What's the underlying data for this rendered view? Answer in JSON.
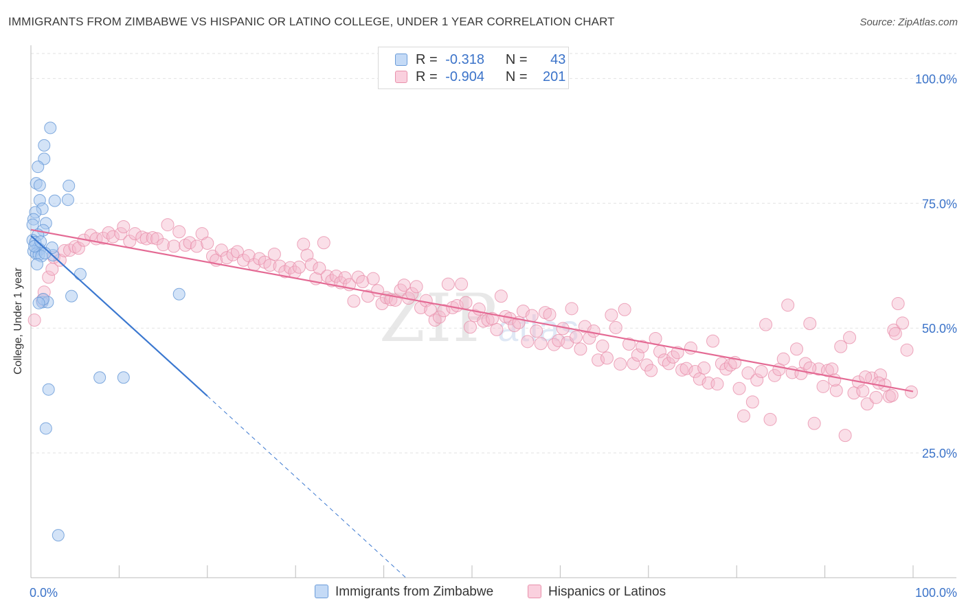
{
  "header": {
    "title": "IMMIGRANTS FROM ZIMBABWE VS HISPANIC OR LATINO COLLEGE, UNDER 1 YEAR CORRELATION CHART",
    "source": "Source: ZipAtlas.com"
  },
  "watermark": {
    "main": "ZIP",
    "sub": "atlas"
  },
  "legend_top": {
    "rows": [
      {
        "r_label": "R =",
        "r_value": "-0.318",
        "n_label": "N =",
        "n_value": "43",
        "color": "#a8c8f0"
      },
      {
        "r_label": "R =",
        "r_value": "-0.904",
        "n_label": "N =",
        "n_value": "201",
        "color": "#f5b8cc"
      }
    ]
  },
  "legend_bottom": {
    "series1": "Immigrants from Zimbabwe",
    "series2": "Hispanics or Latinos"
  },
  "colors": {
    "blue_fill": "#a8c8f0",
    "blue_stroke": "#6a9bd8",
    "blue_line": "#3b78d0",
    "pink_fill": "#f5b8cc",
    "pink_stroke": "#e890ab",
    "pink_line": "#e46a94",
    "axis_text": "#3b73c9",
    "grid": "#e2e2e2"
  },
  "chart_data": {
    "type": "scatter",
    "title": "IMMIGRANTS FROM ZIMBABWE VS HISPANIC OR LATINO COLLEGE, UNDER 1 YEAR CORRELATION CHART",
    "xlabel": "",
    "ylabel": "College, Under 1 year",
    "xlim": [
      0,
      100
    ],
    "ylim": [
      0,
      105
    ],
    "x_tick_labels": [
      "0.0%",
      "100.0%"
    ],
    "y_ticks": [
      25,
      50,
      75,
      100
    ],
    "y_tick_labels": [
      "25.0%",
      "50.0%",
      "75.0%",
      "100.0%"
    ],
    "grid": true,
    "legend_placement": "top-center",
    "series": [
      {
        "name": "Immigrants from Zimbabwe",
        "r": -0.318,
        "n": 43,
        "trend": {
          "x": [
            0,
            20
          ],
          "y": [
            68.5,
            36.4
          ],
          "dashed_to": {
            "x": 42.5,
            "y": 0
          }
        },
        "points": [
          [
            2.2,
            90.1
          ],
          [
            1.5,
            86.6
          ],
          [
            1.5,
            83.9
          ],
          [
            0.8,
            82.3
          ],
          [
            4.3,
            78.5
          ],
          [
            0.6,
            79.0
          ],
          [
            1.0,
            78.6
          ],
          [
            4.2,
            75.7
          ],
          [
            2.7,
            75.5
          ],
          [
            1.0,
            75.6
          ],
          [
            1.3,
            73.9
          ],
          [
            0.5,
            73.2
          ],
          [
            0.3,
            71.8
          ],
          [
            0.2,
            70.7
          ],
          [
            1.7,
            71.0
          ],
          [
            1.4,
            69.6
          ],
          [
            0.8,
            68.7
          ],
          [
            0.2,
            67.6
          ],
          [
            0.5,
            67.2
          ],
          [
            0.8,
            66.0
          ],
          [
            1.0,
            65.8
          ],
          [
            0.3,
            65.4
          ],
          [
            0.6,
            64.9
          ],
          [
            0.9,
            64.7
          ],
          [
            1.2,
            64.4
          ],
          [
            2.5,
            64.6
          ],
          [
            2.4,
            66.1
          ],
          [
            0.7,
            62.8
          ],
          [
            5.6,
            60.8
          ],
          [
            4.6,
            56.4
          ],
          [
            16.8,
            56.8
          ],
          [
            1.3,
            55.2
          ],
          [
            1.9,
            55.2
          ],
          [
            1.4,
            55.8
          ],
          [
            0.9,
            55.0
          ],
          [
            7.8,
            40.1
          ],
          [
            10.5,
            40.1
          ],
          [
            2.0,
            37.7
          ],
          [
            1.7,
            29.9
          ],
          [
            3.1,
            8.5
          ],
          [
            0.4,
            66.4
          ],
          [
            1.1,
            67.3
          ],
          [
            1.6,
            65.0
          ]
        ]
      },
      {
        "name": "Hispanics or Latinos",
        "r": -0.904,
        "n": 201,
        "trend": {
          "x": [
            0,
            100
          ],
          "y": [
            69.7,
            37.3
          ]
        },
        "points": [
          [
            0.4,
            51.6
          ],
          [
            1.3,
            55.6
          ],
          [
            1.5,
            57.2
          ],
          [
            2.0,
            60.2
          ],
          [
            2.4,
            61.8
          ],
          [
            2.6,
            64.2
          ],
          [
            3.3,
            63.6
          ],
          [
            3.8,
            65.5
          ],
          [
            4.4,
            65.6
          ],
          [
            5.0,
            66.3
          ],
          [
            5.4,
            66.0
          ],
          [
            6.0,
            67.6
          ],
          [
            6.8,
            68.6
          ],
          [
            7.4,
            67.9
          ],
          [
            8.2,
            68.0
          ],
          [
            8.8,
            69.1
          ],
          [
            9.3,
            68.3
          ],
          [
            10.2,
            68.9
          ],
          [
            10.5,
            70.3
          ],
          [
            11.2,
            67.4
          ],
          [
            11.8,
            68.9
          ],
          [
            12.6,
            68.2
          ],
          [
            13.1,
            67.9
          ],
          [
            13.8,
            68.1
          ],
          [
            14.3,
            67.9
          ],
          [
            15.0,
            66.7
          ],
          [
            15.5,
            70.7
          ],
          [
            16.2,
            66.4
          ],
          [
            16.8,
            69.3
          ],
          [
            17.5,
            66.6
          ],
          [
            18.0,
            67.1
          ],
          [
            18.8,
            66.4
          ],
          [
            19.4,
            68.9
          ],
          [
            20.0,
            67.0
          ],
          [
            20.6,
            64.4
          ],
          [
            21.0,
            63.6
          ],
          [
            21.6,
            65.6
          ],
          [
            22.2,
            64.1
          ],
          [
            22.9,
            64.7
          ],
          [
            23.4,
            65.3
          ],
          [
            24.1,
            63.6
          ],
          [
            24.7,
            64.5
          ],
          [
            25.3,
            62.7
          ],
          [
            25.9,
            63.9
          ],
          [
            26.5,
            63.2
          ],
          [
            27.1,
            62.6
          ],
          [
            27.6,
            64.8
          ],
          [
            28.2,
            62.4
          ],
          [
            28.8,
            61.3
          ],
          [
            29.4,
            62.1
          ],
          [
            29.9,
            61.2
          ],
          [
            30.4,
            62.2
          ],
          [
            30.9,
            66.8
          ],
          [
            31.3,
            64.6
          ],
          [
            31.8,
            62.7
          ],
          [
            32.3,
            59.9
          ],
          [
            32.7,
            62.0
          ],
          [
            33.2,
            67.1
          ],
          [
            33.6,
            60.4
          ],
          [
            34.1,
            59.5
          ],
          [
            34.6,
            60.4
          ],
          [
            35.1,
            59.1
          ],
          [
            35.6,
            60.1
          ],
          [
            36.1,
            58.7
          ],
          [
            36.6,
            55.4
          ],
          [
            37.1,
            60.2
          ],
          [
            37.6,
            59.3
          ],
          [
            38.2,
            56.4
          ],
          [
            38.8,
            59.9
          ],
          [
            39.3,
            57.5
          ],
          [
            39.8,
            54.9
          ],
          [
            40.3,
            56.1
          ],
          [
            40.8,
            55.7
          ],
          [
            41.3,
            55.6
          ],
          [
            41.9,
            57.6
          ],
          [
            42.3,
            58.6
          ],
          [
            42.8,
            56.0
          ],
          [
            43.2,
            56.9
          ],
          [
            43.7,
            58.3
          ],
          [
            44.2,
            54.1
          ],
          [
            44.8,
            55.5
          ],
          [
            45.3,
            53.6
          ],
          [
            45.8,
            51.6
          ],
          [
            46.3,
            52.2
          ],
          [
            46.8,
            53.5
          ],
          [
            47.3,
            58.8
          ],
          [
            47.8,
            54.1
          ],
          [
            48.3,
            54.5
          ],
          [
            48.8,
            58.8
          ],
          [
            49.3,
            55.1
          ],
          [
            49.8,
            50.2
          ],
          [
            50.3,
            52.5
          ],
          [
            50.8,
            53.8
          ],
          [
            51.3,
            51.4
          ],
          [
            51.8,
            51.6
          ],
          [
            52.3,
            51.9
          ],
          [
            52.8,
            49.7
          ],
          [
            53.3,
            56.4
          ],
          [
            53.8,
            52.3
          ],
          [
            54.3,
            51.9
          ],
          [
            54.8,
            50.5
          ],
          [
            55.3,
            51.1
          ],
          [
            55.8,
            53.4
          ],
          [
            56.3,
            47.3
          ],
          [
            56.8,
            52.5
          ],
          [
            57.3,
            49.4
          ],
          [
            57.8,
            46.9
          ],
          [
            58.3,
            53.1
          ],
          [
            58.8,
            52.7
          ],
          [
            59.3,
            46.7
          ],
          [
            59.8,
            47.5
          ],
          [
            60.3,
            49.9
          ],
          [
            60.8,
            47.1
          ],
          [
            61.3,
            53.9
          ],
          [
            61.8,
            48.2
          ],
          [
            62.3,
            45.8
          ],
          [
            62.8,
            50.3
          ],
          [
            63.3,
            48.0
          ],
          [
            63.8,
            49.4
          ],
          [
            64.3,
            43.6
          ],
          [
            64.8,
            46.4
          ],
          [
            65.3,
            44.0
          ],
          [
            65.8,
            52.6
          ],
          [
            66.3,
            50.1
          ],
          [
            66.8,
            42.8
          ],
          [
            67.3,
            53.7
          ],
          [
            67.8,
            46.8
          ],
          [
            68.3,
            42.9
          ],
          [
            68.8,
            44.6
          ],
          [
            69.3,
            46.3
          ],
          [
            69.8,
            42.6
          ],
          [
            70.3,
            41.5
          ],
          [
            70.8,
            47.9
          ],
          [
            71.3,
            45.3
          ],
          [
            71.8,
            43.6
          ],
          [
            72.3,
            42.9
          ],
          [
            72.8,
            44.2
          ],
          [
            73.3,
            45.1
          ],
          [
            73.8,
            41.6
          ],
          [
            74.3,
            41.9
          ],
          [
            74.8,
            46.0
          ],
          [
            75.3,
            41.3
          ],
          [
            75.8,
            39.8
          ],
          [
            76.3,
            42.0
          ],
          [
            76.8,
            39.0
          ],
          [
            77.3,
            47.4
          ],
          [
            77.8,
            38.8
          ],
          [
            78.3,
            42.9
          ],
          [
            78.8,
            41.8
          ],
          [
            79.3,
            42.6
          ],
          [
            79.8,
            43.1
          ],
          [
            80.3,
            37.9
          ],
          [
            80.8,
            32.4
          ],
          [
            81.3,
            41.0
          ],
          [
            81.8,
            35.2
          ],
          [
            82.3,
            39.6
          ],
          [
            82.8,
            41.3
          ],
          [
            83.3,
            50.7
          ],
          [
            83.8,
            31.7
          ],
          [
            84.3,
            40.5
          ],
          [
            84.8,
            41.7
          ],
          [
            85.3,
            43.8
          ],
          [
            85.8,
            54.6
          ],
          [
            86.3,
            41.1
          ],
          [
            86.8,
            45.8
          ],
          [
            87.3,
            40.9
          ],
          [
            87.8,
            42.9
          ],
          [
            88.3,
            50.9
          ],
          [
            88.8,
            30.9
          ],
          [
            89.3,
            41.8
          ],
          [
            89.8,
            38.3
          ],
          [
            90.3,
            41.5
          ],
          [
            90.8,
            41.8
          ],
          [
            91.3,
            37.5
          ],
          [
            91.8,
            46.3
          ],
          [
            92.3,
            28.5
          ],
          [
            92.8,
            48.1
          ],
          [
            93.3,
            37.0
          ],
          [
            93.8,
            39.2
          ],
          [
            94.3,
            37.4
          ],
          [
            94.8,
            34.8
          ],
          [
            95.3,
            40.0
          ],
          [
            95.8,
            36.1
          ],
          [
            96.3,
            40.6
          ],
          [
            96.8,
            38.6
          ],
          [
            97.3,
            36.3
          ],
          [
            97.8,
            49.6
          ],
          [
            98.3,
            54.9
          ],
          [
            98.8,
            51.0
          ],
          [
            99.3,
            45.6
          ],
          [
            99.8,
            37.2
          ],
          [
            88.3,
            42.0
          ],
          [
            91.1,
            39.6
          ],
          [
            96.1,
            39.0
          ],
          [
            98.0,
            48.9
          ],
          [
            97.6,
            36.5
          ],
          [
            94.6,
            40.2
          ]
        ]
      }
    ]
  }
}
